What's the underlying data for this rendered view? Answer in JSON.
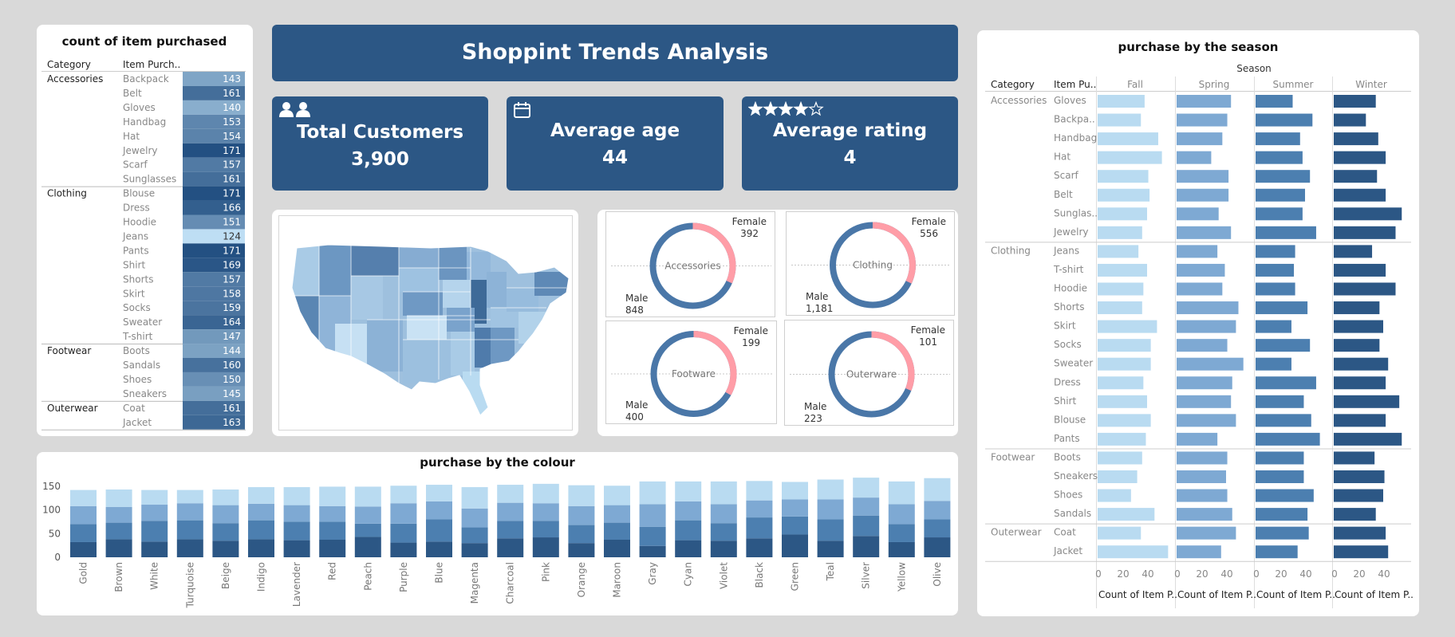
{
  "dashboard": {
    "title": "Shoppint Trends Analysis",
    "kpis": [
      {
        "label": "Total Customers",
        "value": "3,900",
        "icon": "users-icon"
      },
      {
        "label": "Average age",
        "value": "44",
        "icon": "calendar-icon"
      },
      {
        "label": "Average rating",
        "value": "4",
        "icon": "star-rating-icon",
        "stars_filled": 4,
        "stars_total": 5
      }
    ]
  },
  "colors": {
    "dark": "#2c5785",
    "mid": "#4c7fb0",
    "light": "#7ea9d3",
    "pale": "#b9dbf1",
    "female": "#ff9da7",
    "male": "#4a77a8"
  },
  "item_table": {
    "title": "count of item purchased",
    "headers": [
      "Category",
      "Item Purch.."
    ],
    "groups": [
      {
        "category": "Accessories",
        "rows": [
          [
            "Backpack",
            143
          ],
          [
            "Belt",
            161
          ],
          [
            "Gloves",
            140
          ],
          [
            "Handbag",
            153
          ],
          [
            "Hat",
            154
          ],
          [
            "Jewelry",
            171
          ],
          [
            "Scarf",
            157
          ],
          [
            "Sunglasses",
            161
          ]
        ]
      },
      {
        "category": "Clothing",
        "rows": [
          [
            "Blouse",
            171
          ],
          [
            "Dress",
            166
          ],
          [
            "Hoodie",
            151
          ],
          [
            "Jeans",
            124
          ],
          [
            "Pants",
            171
          ],
          [
            "Shirt",
            169
          ],
          [
            "Shorts",
            157
          ],
          [
            "Skirt",
            158
          ],
          [
            "Socks",
            159
          ],
          [
            "Sweater",
            164
          ],
          [
            "T-shirt",
            147
          ]
        ]
      },
      {
        "category": "Footwear",
        "rows": [
          [
            "Boots",
            144
          ],
          [
            "Sandals",
            160
          ],
          [
            "Shoes",
            150
          ],
          [
            "Sneakers",
            145
          ]
        ]
      },
      {
        "category": "Outerwear",
        "rows": [
          [
            "Coat",
            161
          ],
          [
            "Jacket",
            163
          ]
        ]
      }
    ]
  },
  "donuts": [
    {
      "center": "Accessories",
      "female_label": "Female",
      "female": 392,
      "female_text": "392",
      "male_label": "Male",
      "male": 848,
      "male_text": "848"
    },
    {
      "center": "Clothing",
      "female_label": "Female",
      "female": 556,
      "female_text": "556",
      "male_label": "Male",
      "male": 1181,
      "male_text": "1,181"
    },
    {
      "center": "Footware",
      "female_label": "Female",
      "female": 199,
      "female_text": "199",
      "male_label": "Male",
      "male": 400,
      "male_text": "400"
    },
    {
      "center": "Outerware",
      "female_label": "Female",
      "female": 101,
      "female_text": "101",
      "male_label": "Male",
      "male": 223,
      "male_text": "223"
    }
  ],
  "chart_data": [
    {
      "type": "bar",
      "stacked": true,
      "title": "purchase by the colour",
      "categories": [
        "Gold",
        "Brown",
        "White",
        "Turquoise",
        "Beige",
        "Indigo",
        "Lavender",
        "Red",
        "Peach",
        "Purple",
        "Blue",
        "Magenta",
        "Charcoal",
        "Pink",
        "Orange",
        "Maroon",
        "Gray",
        "Cyan",
        "Violet",
        "Black",
        "Green",
        "Teal",
        "Silver",
        "Yellow",
        "Olive"
      ],
      "series": [
        {
          "values": [
            32,
            38,
            33,
            38,
            35,
            38,
            36,
            37,
            43,
            31,
            33,
            30,
            40,
            42,
            30,
            37,
            24,
            36,
            35,
            40,
            48,
            35,
            45,
            32,
            42
          ]
        },
        {
          "values": [
            38,
            35,
            44,
            40,
            37,
            40,
            39,
            38,
            28,
            40,
            47,
            33,
            37,
            35,
            38,
            36,
            40,
            42,
            37,
            44,
            38,
            45,
            43,
            38,
            38
          ]
        },
        {
          "values": [
            38,
            33,
            34,
            36,
            38,
            35,
            35,
            33,
            36,
            43,
            38,
            40,
            38,
            37,
            40,
            37,
            48,
            40,
            40,
            36,
            36,
            42,
            38,
            42,
            39
          ]
        },
        {
          "values": [
            34,
            37,
            31,
            28,
            33,
            35,
            38,
            41,
            42,
            37,
            35,
            45,
            38,
            41,
            44,
            41,
            48,
            42,
            48,
            41,
            37,
            42,
            42,
            48,
            48
          ]
        }
      ],
      "yticks": [
        0,
        50,
        100,
        150
      ],
      "ylim": [
        0,
        180
      ]
    },
    {
      "type": "bar",
      "orientation": "horizontal",
      "title": "purchase by the season",
      "column_header": "Season",
      "row_headers": [
        "Category",
        "Item Pu.."
      ],
      "seasons": [
        "Fall",
        "Spring",
        "Summer",
        "Winter"
      ],
      "xticks": [
        0,
        20,
        40
      ],
      "xlim": [
        0,
        60
      ],
      "axis_label": "Count of Item P..",
      "groups": [
        {
          "category": "Accessories",
          "items": [
            {
              "item": "Gloves",
              "values": [
                38,
                44,
                30,
                34
              ]
            },
            {
              "item": "Backpa..",
              "values": [
                35,
                41,
                46,
                26
              ]
            },
            {
              "item": "Handbag",
              "values": [
                49,
                37,
                36,
                36
              ]
            },
            {
              "item": "Hat",
              "values": [
                52,
                28,
                38,
                42
              ]
            },
            {
              "item": "Scarf",
              "values": [
                41,
                42,
                44,
                35
              ]
            },
            {
              "item": "Belt",
              "values": [
                42,
                42,
                40,
                42
              ]
            },
            {
              "item": "Sunglas..",
              "values": [
                40,
                34,
                38,
                55
              ]
            },
            {
              "item": "Jewelry",
              "values": [
                36,
                44,
                49,
                50
              ]
            }
          ]
        },
        {
          "category": "Clothing",
          "items": [
            {
              "item": "Jeans",
              "values": [
                33,
                33,
                32,
                31
              ]
            },
            {
              "item": "T-shirt",
              "values": [
                40,
                39,
                31,
                42
              ]
            },
            {
              "item": "Hoodie",
              "values": [
                37,
                37,
                32,
                50
              ]
            },
            {
              "item": "Shorts",
              "values": [
                36,
                50,
                42,
                37
              ]
            },
            {
              "item": "Skirt",
              "values": [
                48,
                48,
                29,
                40
              ]
            },
            {
              "item": "Socks",
              "values": [
                43,
                41,
                44,
                37
              ]
            },
            {
              "item": "Sweater",
              "values": [
                43,
                54,
                29,
                44
              ]
            },
            {
              "item": "Dress",
              "values": [
                37,
                45,
                49,
                42
              ]
            },
            {
              "item": "Shirt",
              "values": [
                40,
                44,
                39,
                53
              ]
            },
            {
              "item": "Blouse",
              "values": [
                43,
                48,
                45,
                42
              ]
            },
            {
              "item": "Pants",
              "values": [
                39,
                33,
                52,
                55
              ]
            }
          ]
        },
        {
          "category": "Footwear",
          "items": [
            {
              "item": "Boots",
              "values": [
                36,
                41,
                39,
                33
              ]
            },
            {
              "item": "Sneakers",
              "values": [
                32,
                40,
                39,
                41
              ]
            },
            {
              "item": "Shoes",
              "values": [
                27,
                41,
                47,
                40
              ]
            },
            {
              "item": "Sandals",
              "values": [
                46,
                45,
                42,
                34
              ]
            }
          ]
        },
        {
          "category": "Outerwear",
          "items": [
            {
              "item": "Coat",
              "values": [
                35,
                48,
                43,
                42
              ]
            },
            {
              "item": "Jacket",
              "values": [
                57,
                36,
                34,
                44
              ]
            }
          ]
        }
      ]
    }
  ]
}
